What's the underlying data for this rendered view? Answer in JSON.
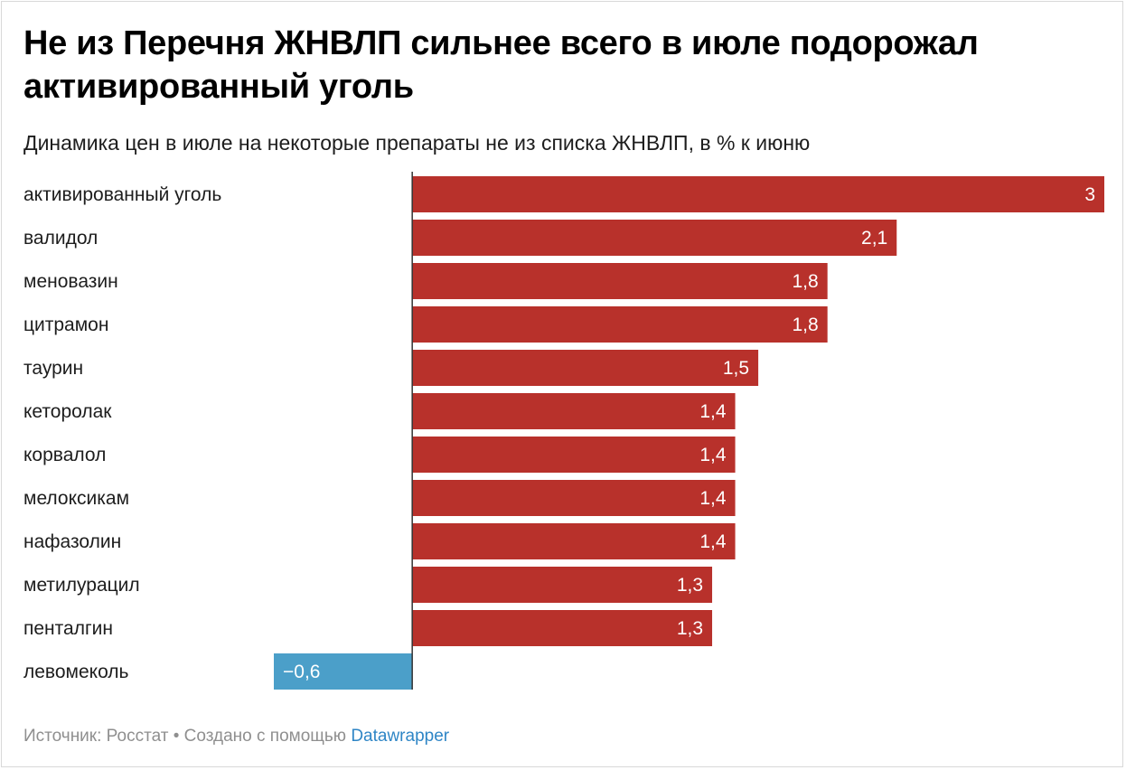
{
  "title": "Не из Перечня ЖНВЛП сильнее всего в июле подорожал активированный уголь",
  "subtitle": "Динамика цен в июле на некоторые препараты не из списка ЖНВЛП, в % к июню",
  "footer": {
    "source": "Источник: Росстат",
    "separator": "•",
    "created_with": "Создано с помощью",
    "tool": "Datawrapper"
  },
  "colors": {
    "positive": "#b8312b",
    "negative": "#4b9fc9",
    "axis": "#333333"
  },
  "chart_data": {
    "type": "bar",
    "orientation": "horizontal",
    "categories": [
      "активированный уголь",
      "валидол",
      "меновазин",
      "цитрамон",
      "таурин",
      "кеторолак",
      "корвалол",
      "мелоксикам",
      "нафазолин",
      "метилурацил",
      "пенталгин",
      "левомеколь"
    ],
    "values": [
      3,
      2.1,
      1.8,
      1.8,
      1.5,
      1.4,
      1.4,
      1.4,
      1.4,
      1.3,
      1.3,
      -0.6
    ],
    "value_labels": [
      "3",
      "2,1",
      "1,8",
      "1,8",
      "1,5",
      "1,4",
      "1,4",
      "1,4",
      "1,4",
      "1,3",
      "1,3",
      "−0,6"
    ],
    "xlim": [
      -0.6,
      3
    ]
  }
}
